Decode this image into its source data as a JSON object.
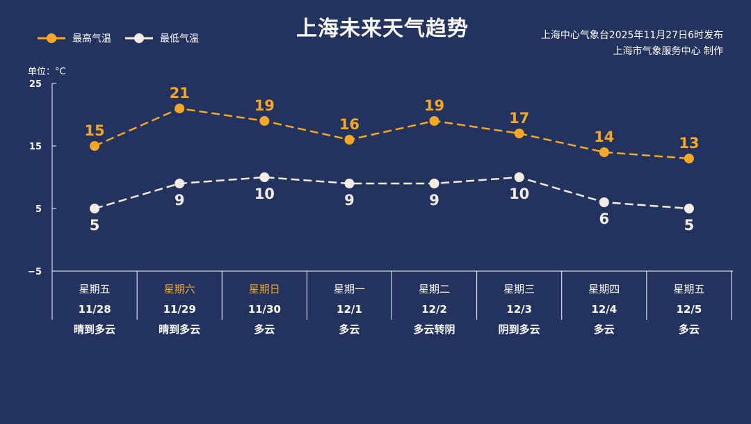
{
  "header": {
    "title": "上海未来天气趋势",
    "source_line1": "上海中心气象台2025年11月27日6时发布",
    "source_line2": "上海市气象服务中心 制作",
    "unit": "单位：°C"
  },
  "colors": {
    "background": "#23335f",
    "high": "#f5a623",
    "low": "#f3ece4",
    "weekend": "#f5a623"
  },
  "chart_data": {
    "type": "line",
    "title": "上海未来天气趋势",
    "ylabel": "单位：°C",
    "ylim": [
      -5,
      25
    ],
    "yticks": [
      "25",
      "15",
      "5",
      "−5"
    ],
    "ytick_values": [
      25,
      15,
      5,
      -5
    ],
    "legend_position": "top-left",
    "categories": [
      "11/28",
      "11/29",
      "11/30",
      "12/1",
      "12/2",
      "12/3",
      "12/4",
      "12/5"
    ],
    "weekdays": [
      "星期五",
      "星期六",
      "星期日",
      "星期一",
      "星期二",
      "星期三",
      "星期四",
      "星期五"
    ],
    "weekend": [
      false,
      true,
      true,
      false,
      false,
      false,
      false,
      false
    ],
    "weather": [
      "晴到多云",
      "晴到多云",
      "多云",
      "多云",
      "多云转阴",
      "阴到多云",
      "多云",
      "多云"
    ],
    "series": [
      {
        "name": "最高气温",
        "values": [
          15,
          21,
          19,
          16,
          19,
          17,
          14,
          13
        ]
      },
      {
        "name": "最低气温",
        "values": [
          5,
          9,
          10,
          9,
          9,
          10,
          6,
          5
        ]
      }
    ]
  }
}
